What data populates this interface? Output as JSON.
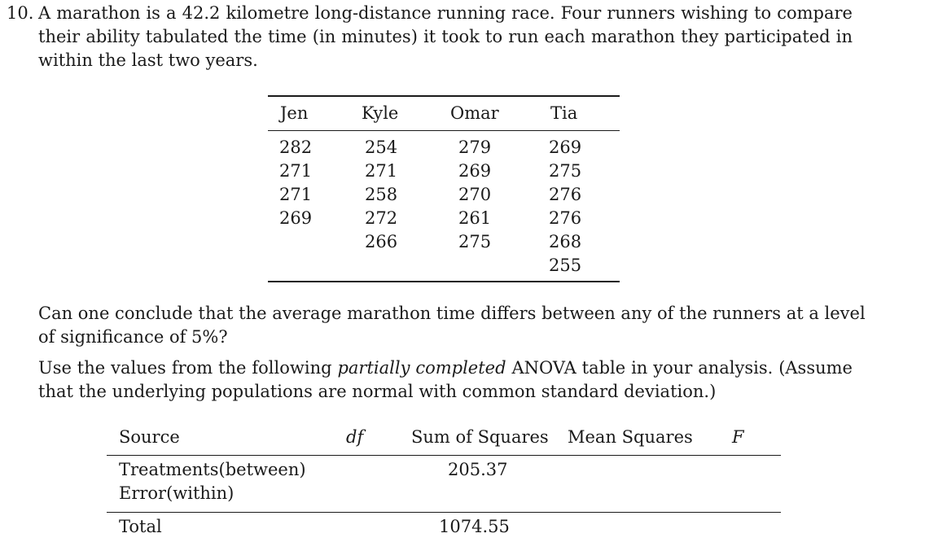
{
  "question": {
    "number": "10.",
    "intro_lines": [
      "A marathon is a 42.2 kilometre long-distance running race. Four runners wishing to compare",
      "their ability tabulated the time (in minutes) it took to run each marathon they participated in",
      "within the last two years."
    ],
    "prompt_lines": [
      "Can one conclude that the average marathon time differs between any of the runners at a level",
      "of significance of 5%?"
    ],
    "instruction": {
      "line1_a": "Use the values from the following",
      "line1_em": "partially completed",
      "line1_b": "ANOVA table in your analysis. (Assume",
      "line2": "that the underlying populations are normal with common standard deviation.)"
    }
  },
  "times_table": {
    "headers": [
      "Jen",
      "Kyle",
      "Omar",
      "Tia"
    ],
    "columns": [
      [
        "282",
        "271",
        "271",
        "269"
      ],
      [
        "254",
        "271",
        "258",
        "272",
        "266"
      ],
      [
        "279",
        "269",
        "270",
        "261",
        "275"
      ],
      [
        "269",
        "275",
        "276",
        "276",
        "268",
        "255"
      ]
    ]
  },
  "anova_table": {
    "headers": {
      "source": "Source",
      "df": "df",
      "ss": "Sum of Squares",
      "ms": "Mean Squares",
      "f": "F"
    },
    "rows": [
      {
        "source": "Treatments(between)",
        "df": "",
        "ss": "205.37",
        "ms": "",
        "f": ""
      },
      {
        "source": "Error(within)",
        "df": "",
        "ss": "",
        "ms": "",
        "f": ""
      },
      {
        "source": "Total",
        "df": "",
        "ss": "1074.55",
        "ms": "",
        "f": ""
      }
    ]
  }
}
